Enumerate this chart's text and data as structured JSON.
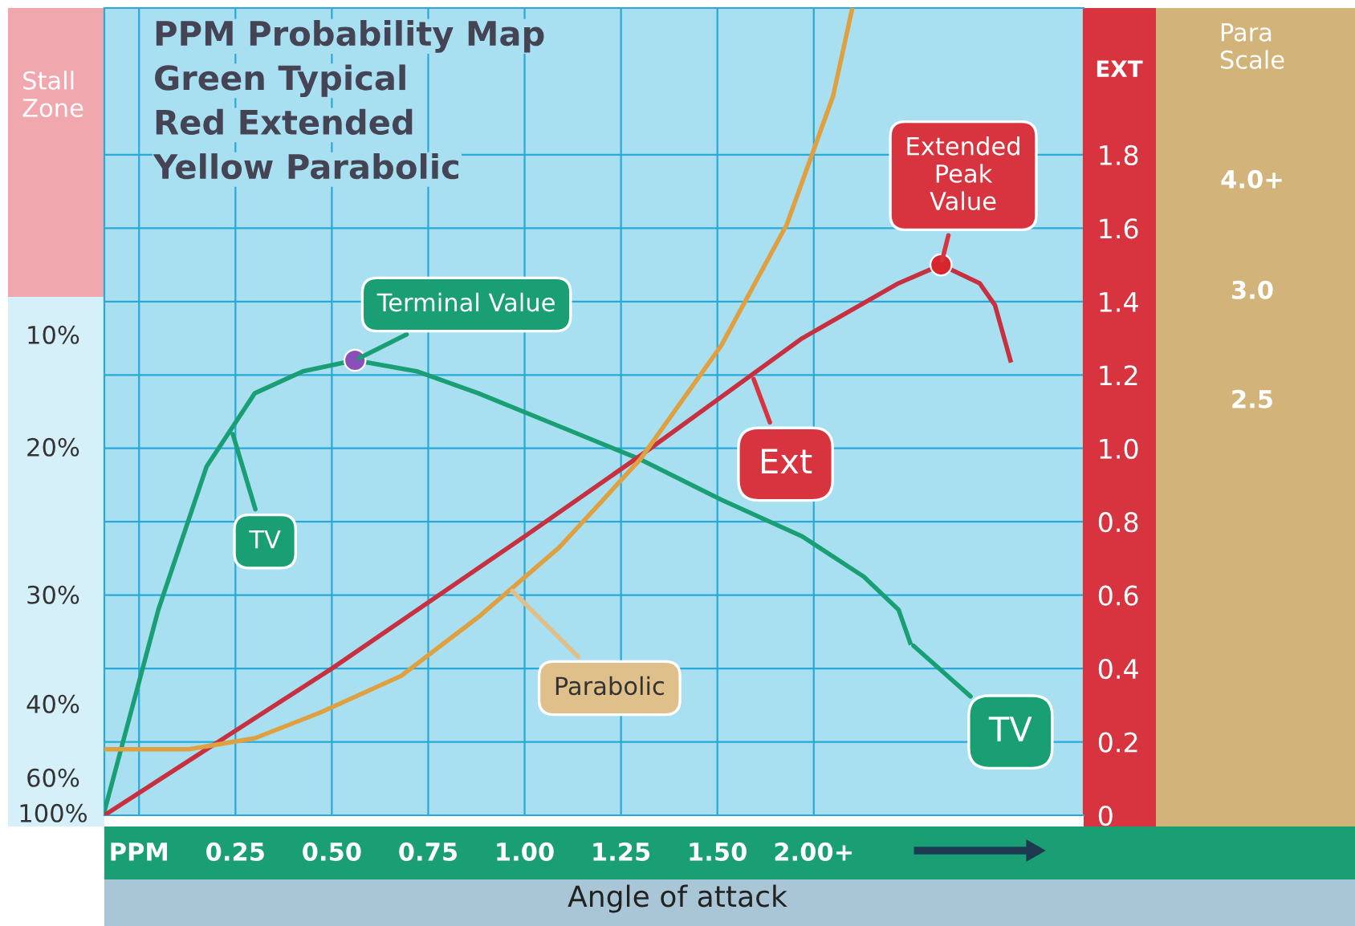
{
  "chart_data": {
    "type": "line",
    "title": "PPM Probability Map",
    "xlabel": "Angle of attack",
    "ylabel": "EXT",
    "annotations": [
      "Green Typical",
      "Red Extended",
      "Yellow Parabolic",
      "Stall\nZone",
      "10%",
      "20%",
      "30%",
      "40%",
      "60%",
      "100%",
      "Para\nScale",
      "4.0+",
      "3.0",
      "2.5",
      {
        "text": "Terminal Value",
        "x": 0.56,
        "y": 1.24
      },
      {
        "text": "Extended\nPeak\nValue",
        "x": 2.08,
        "y": 1.5
      },
      {
        "text": "Ext",
        "x": 1.59,
        "y": 1.2
      },
      {
        "text": "TV",
        "x": 0.24,
        "y": 1.05
      },
      {
        "text": "TV",
        "x": 2.0,
        "y": 0.47
      },
      {
        "text": "Parabolic",
        "x": 0.96,
        "y": 0.62
      }
    ],
    "xlim": [
      -0.09,
      2.45
    ],
    "xticks": [
      {
        "value": 0,
        "label": "PPM"
      },
      0.25,
      {
        "value": 0.5,
        "label": "0.50"
      },
      0.75,
      {
        "value": 1.0,
        "label": "1.00"
      },
      1.25,
      {
        "value": 1.5,
        "label": "1.50"
      },
      {
        "value": 1.75,
        "label": "2.00+"
      }
    ],
    "ylim": [
      0,
      2.2
    ],
    "yticks": [
      0,
      0.2,
      0.4,
      0.6,
      0.8,
      {
        "value": 1.0,
        "label": "1.0"
      },
      1.2,
      1.4,
      1.6,
      1.8
    ],
    "grid": true,
    "marker": "none",
    "line_style": "solid",
    "series": [
      {
        "color": "#1a9e74",
        "x": [
          -0.09,
          0.05,
          0.175,
          0.3,
          0.425,
          0.56,
          0.72,
          0.88,
          1.09,
          1.3,
          1.51,
          1.72,
          1.88,
          1.97,
          2.0
        ],
        "values": [
          0.01,
          0.56,
          0.95,
          1.15,
          1.21,
          1.24,
          1.21,
          1.15,
          1.06,
          0.97,
          0.86,
          0.76,
          0.65,
          0.56,
          0.47
        ]
      },
      {
        "color": "#c8303f",
        "x": [
          -0.09,
          0.5,
          1.0,
          1.3,
          1.72,
          1.97,
          2.08,
          2.18,
          2.22,
          2.26
        ],
        "values": [
          0.0,
          0.4,
          0.76,
          0.98,
          1.3,
          1.45,
          1.5,
          1.45,
          1.39,
          1.24
        ]
      },
      {
        "color": "#e0a040",
        "x": [
          -0.09,
          0.13,
          0.3,
          0.47,
          0.68,
          0.88,
          1.09,
          1.3,
          1.51,
          1.68,
          1.8,
          1.85
        ],
        "values": [
          0.18,
          0.18,
          0.21,
          0.28,
          0.38,
          0.54,
          0.73,
          0.97,
          1.28,
          1.61,
          1.96,
          2.2
        ]
      },
      {
        "type": "scatter",
        "marker": "circle",
        "x": [
          0.56,
          2.08
        ],
        "values": [
          1.24,
          1.5
        ],
        "colors": [
          "#8a4fb8",
          "#d8262e"
        ]
      }
    ]
  }
}
